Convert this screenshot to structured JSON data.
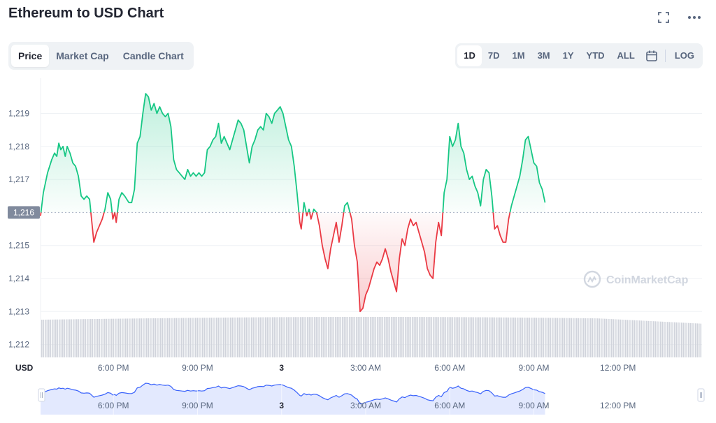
{
  "header": {
    "title": "Ethereum to USD Chart",
    "icons": [
      "fullscreen-icon",
      "more-options-icon"
    ]
  },
  "tabs": [
    {
      "label": "Price",
      "active": true
    },
    {
      "label": "Market Cap",
      "active": false
    },
    {
      "label": "Candle Chart",
      "active": false
    }
  ],
  "ranges": [
    {
      "label": "1D",
      "active": true
    },
    {
      "label": "7D",
      "active": false
    },
    {
      "label": "1M",
      "active": false
    },
    {
      "label": "3M",
      "active": false
    },
    {
      "label": "1Y",
      "active": false
    },
    {
      "label": "YTD",
      "active": false
    },
    {
      "label": "ALL",
      "active": false
    }
  ],
  "log_label": "LOG",
  "watermark": "CoinMarketCap",
  "chart_data": {
    "type": "line",
    "title": "",
    "xlabel": "",
    "ylabel": "",
    "currency_label": "USD",
    "reference_price": 1216,
    "reference_label": "1,216",
    "ylim": [
      1212,
      1219.8
    ],
    "y_ticks": [
      {
        "value": 1219,
        "label": "1,219"
      },
      {
        "value": 1218,
        "label": "1,218"
      },
      {
        "value": 1217,
        "label": "1,217"
      },
      {
        "value": 1215,
        "label": "1,215"
      },
      {
        "value": 1214,
        "label": "1,214"
      },
      {
        "value": 1213,
        "label": "1,213"
      },
      {
        "value": 1212,
        "label": "1,212"
      }
    ],
    "x_range_hours": [
      15.4,
      15.0
    ],
    "x_ticks": [
      {
        "hour": 18,
        "label": "6:00 PM",
        "bold": false
      },
      {
        "hour": 21,
        "label": "9:00 PM",
        "bold": false
      },
      {
        "hour": 24,
        "label": "3",
        "bold": true
      },
      {
        "hour": 27,
        "label": "3:00 AM",
        "bold": false
      },
      {
        "hour": 30,
        "label": "6:00 AM",
        "bold": false
      },
      {
        "hour": 33,
        "label": "9:00 AM",
        "bold": false
      },
      {
        "hour": 36,
        "label": "12:00 PM",
        "bold": false
      }
    ],
    "grid": true,
    "legend": "none",
    "colors": {
      "up": "#16c784",
      "down": "#ea3943",
      "volume": "#d1d4dc",
      "navigator": "#3861fb"
    },
    "price_keypoints": [
      [
        15.4,
        1215.9
      ],
      [
        15.5,
        1216.6
      ],
      [
        15.65,
        1217.2
      ],
      [
        15.8,
        1217.6
      ],
      [
        15.9,
        1217.8
      ],
      [
        15.98,
        1217.7
      ],
      [
        16.05,
        1218.1
      ],
      [
        16.12,
        1217.9
      ],
      [
        16.2,
        1218.0
      ],
      [
        16.28,
        1217.7
      ],
      [
        16.35,
        1218.0
      ],
      [
        16.45,
        1217.8
      ],
      [
        16.55,
        1217.5
      ],
      [
        16.65,
        1217.4
      ],
      [
        16.75,
        1217.1
      ],
      [
        16.85,
        1216.5
      ],
      [
        16.95,
        1216.4
      ],
      [
        17.05,
        1216.5
      ],
      [
        17.15,
        1216.4
      ],
      [
        17.3,
        1215.1
      ],
      [
        17.4,
        1215.4
      ],
      [
        17.5,
        1215.6
      ],
      [
        17.6,
        1215.8
      ],
      [
        17.7,
        1216.1
      ],
      [
        17.8,
        1216.6
      ],
      [
        17.9,
        1216.4
      ],
      [
        17.98,
        1215.8
      ],
      [
        18.05,
        1216.0
      ],
      [
        18.1,
        1215.7
      ],
      [
        18.2,
        1216.4
      ],
      [
        18.3,
        1216.6
      ],
      [
        18.4,
        1216.5
      ],
      [
        18.55,
        1216.3
      ],
      [
        18.65,
        1216.3
      ],
      [
        18.75,
        1216.7
      ],
      [
        18.85,
        1218.1
      ],
      [
        18.95,
        1218.3
      ],
      [
        19.05,
        1219.0
      ],
      [
        19.15,
        1219.6
      ],
      [
        19.25,
        1219.5
      ],
      [
        19.35,
        1219.1
      ],
      [
        19.45,
        1219.3
      ],
      [
        19.55,
        1219.0
      ],
      [
        19.65,
        1219.2
      ],
      [
        19.75,
        1219.0
      ],
      [
        19.85,
        1218.9
      ],
      [
        19.95,
        1219.0
      ],
      [
        20.05,
        1218.6
      ],
      [
        20.15,
        1217.6
      ],
      [
        20.25,
        1217.3
      ],
      [
        20.35,
        1217.2
      ],
      [
        20.45,
        1217.1
      ],
      [
        20.55,
        1217.0
      ],
      [
        20.65,
        1217.3
      ],
      [
        20.75,
        1217.1
      ],
      [
        20.85,
        1217.2
      ],
      [
        20.95,
        1217.1
      ],
      [
        21.05,
        1217.2
      ],
      [
        21.15,
        1217.1
      ],
      [
        21.25,
        1217.2
      ],
      [
        21.35,
        1217.9
      ],
      [
        21.45,
        1218.0
      ],
      [
        21.55,
        1218.2
      ],
      [
        21.65,
        1218.3
      ],
      [
        21.75,
        1218.7
      ],
      [
        21.85,
        1218.1
      ],
      [
        21.95,
        1218.3
      ],
      [
        22.05,
        1218.1
      ],
      [
        22.15,
        1217.9
      ],
      [
        22.25,
        1218.2
      ],
      [
        22.35,
        1218.5
      ],
      [
        22.45,
        1218.8
      ],
      [
        22.55,
        1218.7
      ],
      [
        22.65,
        1218.5
      ],
      [
        22.75,
        1218.0
      ],
      [
        22.85,
        1217.5
      ],
      [
        22.95,
        1218.0
      ],
      [
        23.05,
        1218.2
      ],
      [
        23.15,
        1218.5
      ],
      [
        23.25,
        1218.6
      ],
      [
        23.35,
        1218.5
      ],
      [
        23.45,
        1219.0
      ],
      [
        23.55,
        1218.9
      ],
      [
        23.65,
        1218.7
      ],
      [
        23.75,
        1219.0
      ],
      [
        23.85,
        1219.1
      ],
      [
        23.95,
        1219.2
      ],
      [
        24.05,
        1219.0
      ],
      [
        24.15,
        1218.6
      ],
      [
        24.25,
        1218.2
      ],
      [
        24.35,
        1218.0
      ],
      [
        24.45,
        1217.4
      ],
      [
        24.55,
        1216.6
      ],
      [
        24.65,
        1215.7
      ],
      [
        24.7,
        1215.5
      ],
      [
        24.8,
        1216.3
      ],
      [
        24.9,
        1215.9
      ],
      [
        24.98,
        1216.1
      ],
      [
        25.05,
        1215.8
      ],
      [
        25.15,
        1216.1
      ],
      [
        25.25,
        1216.0
      ],
      [
        25.35,
        1215.6
      ],
      [
        25.45,
        1215.0
      ],
      [
        25.55,
        1214.6
      ],
      [
        25.65,
        1214.3
      ],
      [
        25.75,
        1214.9
      ],
      [
        25.85,
        1215.3
      ],
      [
        25.95,
        1215.7
      ],
      [
        26.05,
        1215.1
      ],
      [
        26.15,
        1215.6
      ],
      [
        26.25,
        1216.2
      ],
      [
        26.35,
        1216.3
      ],
      [
        26.5,
        1215.8
      ],
      [
        26.6,
        1215.0
      ],
      [
        26.7,
        1214.5
      ],
      [
        26.8,
        1213.0
      ],
      [
        26.9,
        1213.1
      ],
      [
        27.0,
        1213.5
      ],
      [
        27.1,
        1213.7
      ],
      [
        27.2,
        1214.0
      ],
      [
        27.3,
        1214.3
      ],
      [
        27.4,
        1214.5
      ],
      [
        27.5,
        1214.4
      ],
      [
        27.6,
        1214.6
      ],
      [
        27.7,
        1214.9
      ],
      [
        27.8,
        1214.6
      ],
      [
        27.9,
        1214.2
      ],
      [
        28.0,
        1213.9
      ],
      [
        28.1,
        1213.6
      ],
      [
        28.2,
        1214.6
      ],
      [
        28.3,
        1215.2
      ],
      [
        28.4,
        1215.0
      ],
      [
        28.5,
        1215.5
      ],
      [
        28.6,
        1215.8
      ],
      [
        28.7,
        1215.6
      ],
      [
        28.8,
        1215.7
      ],
      [
        28.9,
        1215.4
      ],
      [
        29.0,
        1215.1
      ],
      [
        29.1,
        1214.8
      ],
      [
        29.2,
        1214.3
      ],
      [
        29.3,
        1214.1
      ],
      [
        29.4,
        1214.0
      ],
      [
        29.5,
        1215.1
      ],
      [
        29.6,
        1215.7
      ],
      [
        29.7,
        1215.3
      ],
      [
        29.8,
        1216.6
      ],
      [
        29.9,
        1217.0
      ],
      [
        30.0,
        1218.3
      ],
      [
        30.1,
        1218.0
      ],
      [
        30.2,
        1218.2
      ],
      [
        30.3,
        1218.7
      ],
      [
        30.4,
        1218.0
      ],
      [
        30.5,
        1217.8
      ],
      [
        30.6,
        1217.3
      ],
      [
        30.7,
        1217.0
      ],
      [
        30.8,
        1217.1
      ],
      [
        30.9,
        1216.8
      ],
      [
        31.0,
        1216.6
      ],
      [
        31.1,
        1216.2
      ],
      [
        31.2,
        1217.0
      ],
      [
        31.3,
        1217.3
      ],
      [
        31.4,
        1217.2
      ],
      [
        31.5,
        1216.5
      ],
      [
        31.6,
        1215.5
      ],
      [
        31.7,
        1215.6
      ],
      [
        31.8,
        1215.3
      ],
      [
        31.9,
        1215.1
      ],
      [
        32.0,
        1215.1
      ],
      [
        32.1,
        1215.8
      ],
      [
        32.2,
        1216.2
      ],
      [
        32.3,
        1216.5
      ],
      [
        32.4,
        1216.8
      ],
      [
        32.5,
        1217.1
      ],
      [
        32.6,
        1217.6
      ],
      [
        32.7,
        1218.2
      ],
      [
        32.8,
        1218.3
      ],
      [
        32.9,
        1217.9
      ],
      [
        33.0,
        1217.5
      ],
      [
        33.1,
        1217.4
      ],
      [
        33.2,
        1216.9
      ],
      [
        33.3,
        1216.7
      ],
      [
        33.4,
        1216.3
      ]
    ],
    "navigator": {
      "x_ticks": [
        "6:00 PM",
        "9:00 PM",
        "3",
        "3:00 AM",
        "6:00 AM",
        "9:00 AM",
        "12:00 PM"
      ]
    }
  }
}
